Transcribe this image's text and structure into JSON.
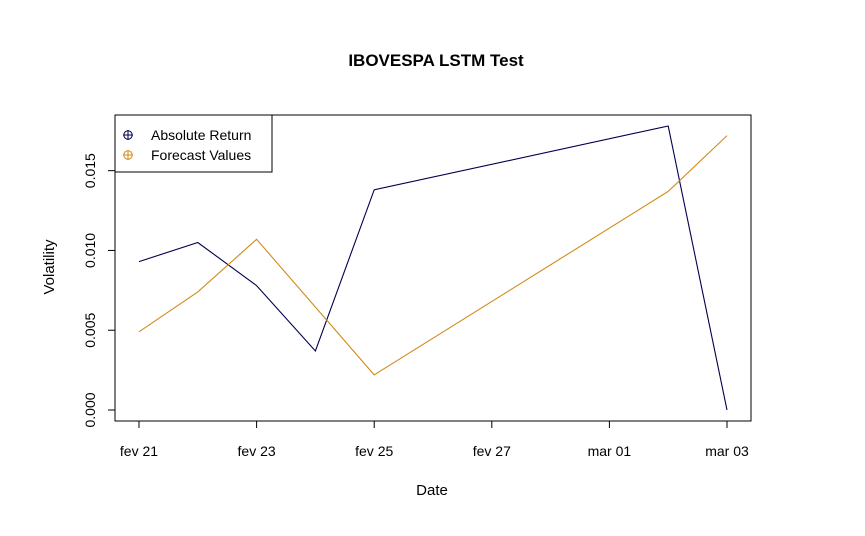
{
  "chart_data": {
    "type": "line",
    "title": "IBOVESPA LSTM Test",
    "xlabel": "Date",
    "ylabel": "Volatility",
    "x": [
      "2025-02-21",
      "2025-02-22",
      "2025-02-23",
      "2025-02-24",
      "2025-02-25",
      "2025-03-02",
      "2025-03-03"
    ],
    "x_tick_labels": [
      "fev 21",
      "fev 23",
      "fev 25",
      "fev 27",
      "mar 01",
      "mar 03"
    ],
    "x_tick_dates": [
      "2025-02-21",
      "2025-02-23",
      "2025-02-25",
      "2025-02-27",
      "2025-03-01",
      "2025-03-03"
    ],
    "y_ticks": [
      "0.000",
      "0.005",
      "0.010",
      "0.015"
    ],
    "ylim": [
      0,
      0.0178
    ],
    "xlim": [
      "2025-02-21",
      "2025-03-03"
    ],
    "grid": false,
    "legend_position": "top-left",
    "series": [
      {
        "name": "Absolute Return",
        "color": "#00004d",
        "x": [
          "2025-02-21",
          "2025-02-22",
          "2025-02-23",
          "2025-02-24",
          "2025-02-25",
          "2025-03-02",
          "2025-03-03"
        ],
        "values": [
          0.0093,
          0.0105,
          0.0078,
          0.0037,
          0.0138,
          0.0178,
          0.0
        ]
      },
      {
        "name": "Forecast Values",
        "color": "#d18b19",
        "x": [
          "2025-02-21",
          "2025-02-22",
          "2025-02-23",
          "2025-02-25",
          "2025-03-02",
          "2025-03-03"
        ],
        "values": [
          0.0049,
          0.0074,
          0.0107,
          0.0022,
          0.0137,
          0.0172
        ]
      }
    ]
  }
}
